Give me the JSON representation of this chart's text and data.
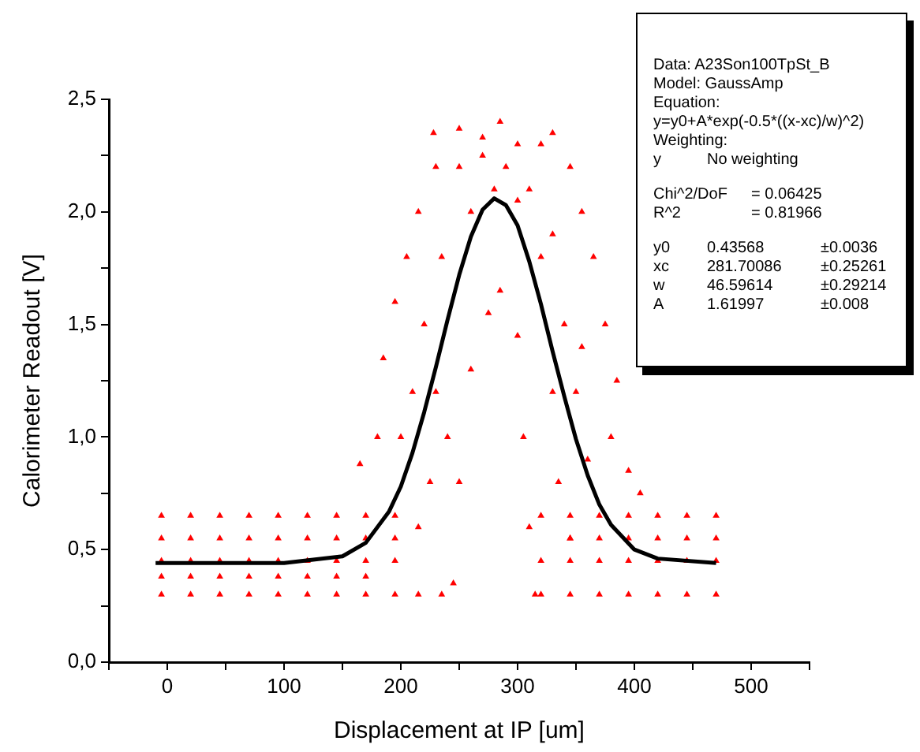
{
  "chart_data": {
    "type": "scatter",
    "xlabel": "Displacement at IP [um]",
    "ylabel": "Calorimeter Readout [V]",
    "xlim": [
      -50,
      550
    ],
    "ylim": [
      0,
      2.5
    ],
    "xticks": [
      {
        "value": -50,
        "label": null
      },
      0,
      {
        "value": 50,
        "label": null
      },
      100,
      {
        "value": 150,
        "label": null
      },
      200,
      {
        "value": 250,
        "label": null
      },
      300,
      {
        "value": 350,
        "label": null
      },
      400,
      {
        "value": 450,
        "label": null
      },
      500,
      {
        "value": 550,
        "label": null
      }
    ],
    "yticks": [
      {
        "value": 0,
        "label": "0,0"
      },
      {
        "value": 0.25,
        "label": null
      },
      {
        "value": 0.5,
        "label": "0,5"
      },
      {
        "value": 0.75,
        "label": null
      },
      {
        "value": 1,
        "label": "1,0"
      },
      {
        "value": 1.25,
        "label": null
      },
      {
        "value": 1.5,
        "label": "1,5"
      },
      {
        "value": 1.75,
        "label": null
      },
      {
        "value": 2,
        "label": "2,0"
      },
      {
        "value": 2.25,
        "label": null
      },
      {
        "value": 2.5,
        "label": "2,5"
      }
    ],
    "grid": false,
    "legend": false,
    "marker": "triangle",
    "series": [
      {
        "type": "scatter",
        "color": "#ff0000",
        "x": [
          -5,
          -5,
          -5,
          -5,
          -5,
          20,
          20,
          20,
          20,
          20,
          45,
          45,
          45,
          45,
          45,
          70,
          70,
          70,
          70,
          70,
          95,
          95,
          95,
          95,
          95,
          120,
          120,
          120,
          120,
          120,
          145,
          145,
          145,
          145,
          145,
          170,
          170,
          170,
          170,
          170,
          195,
          195,
          195,
          195,
          215,
          215,
          235,
          165,
          180,
          185,
          195,
          205,
          215,
          230,
          228,
          250,
          270,
          285,
          300,
          320,
          330,
          345,
          355,
          365,
          375,
          385,
          395,
          405,
          245,
          250,
          260,
          275,
          285,
          300,
          305,
          310,
          315,
          220,
          235,
          260,
          280,
          300,
          320,
          340,
          350,
          360,
          230,
          240,
          225,
          335,
          345,
          210,
          200,
          250,
          270,
          290,
          310,
          330,
          330,
          355,
          380,
          320,
          320,
          320,
          345,
          345,
          345,
          345,
          370,
          370,
          370,
          370,
          395,
          395,
          395,
          395,
          420,
          420,
          420,
          420,
          445,
          445,
          445,
          445,
          470,
          470,
          470,
          470
        ],
        "values": [
          0.65,
          0.55,
          0.45,
          0.38,
          0.3,
          0.65,
          0.55,
          0.45,
          0.38,
          0.3,
          0.65,
          0.55,
          0.45,
          0.38,
          0.3,
          0.65,
          0.55,
          0.45,
          0.38,
          0.3,
          0.65,
          0.55,
          0.45,
          0.38,
          0.3,
          0.65,
          0.55,
          0.45,
          0.38,
          0.3,
          0.65,
          0.55,
          0.45,
          0.38,
          0.3,
          0.65,
          0.55,
          0.45,
          0.38,
          0.3,
          0.65,
          0.55,
          0.45,
          0.3,
          0.6,
          0.3,
          0.3,
          0.88,
          1.0,
          1.35,
          1.6,
          1.8,
          2.0,
          2.2,
          2.35,
          2.37,
          2.33,
          2.4,
          2.3,
          2.3,
          2.35,
          2.2,
          2.0,
          1.8,
          1.5,
          1.25,
          0.85,
          0.75,
          0.35,
          0.8,
          1.3,
          1.55,
          1.65,
          1.45,
          1.0,
          0.6,
          0.3,
          1.5,
          1.8,
          2.0,
          2.1,
          2.05,
          1.8,
          1.5,
          1.2,
          0.9,
          1.2,
          1.0,
          0.8,
          0.8,
          0.55,
          1.2,
          1.0,
          2.2,
          2.25,
          2.2,
          2.1,
          1.9,
          1.2,
          1.4,
          1.0,
          0.65,
          0.45,
          0.3,
          0.65,
          0.55,
          0.45,
          0.3,
          0.65,
          0.55,
          0.45,
          0.3,
          0.65,
          0.55,
          0.45,
          0.3,
          0.65,
          0.55,
          0.45,
          0.3,
          0.65,
          0.55,
          0.45,
          0.3,
          0.65,
          0.55,
          0.45,
          0.3
        ]
      },
      {
        "type": "line",
        "color": "#000000",
        "marker": "none",
        "line_style": "solid",
        "x": [
          -10,
          50,
          100,
          150,
          170,
          190,
          200,
          210,
          220,
          230,
          240,
          250,
          260,
          270,
          280,
          290,
          300,
          310,
          320,
          330,
          340,
          350,
          360,
          370,
          380,
          400,
          420,
          470
        ],
        "values": [
          0.44,
          0.44,
          0.44,
          0.47,
          0.53,
          0.67,
          0.78,
          0.93,
          1.11,
          1.31,
          1.52,
          1.72,
          1.89,
          2.01,
          2.06,
          2.03,
          1.94,
          1.78,
          1.59,
          1.38,
          1.18,
          0.99,
          0.83,
          0.7,
          0.61,
          0.5,
          0.46,
          0.44
        ]
      }
    ],
    "annotations": [
      "Data: A23Son100TpSt_B",
      "Model: GaussAmp",
      "Equation:",
      "y=y0+A*exp(-0.5*((x-xc)/w)^2)",
      "Weighting:",
      "y\tNo weighting",
      "Chi^2/DoF\t= 0.06425",
      "R^2\t= 0.81966",
      "y0\t0.43568\t±0.0036",
      "xc\t281.70086\t±0.25261",
      "w\t46.59614\t±0.29214",
      "A\t1.61997\t±0.008"
    ]
  }
}
